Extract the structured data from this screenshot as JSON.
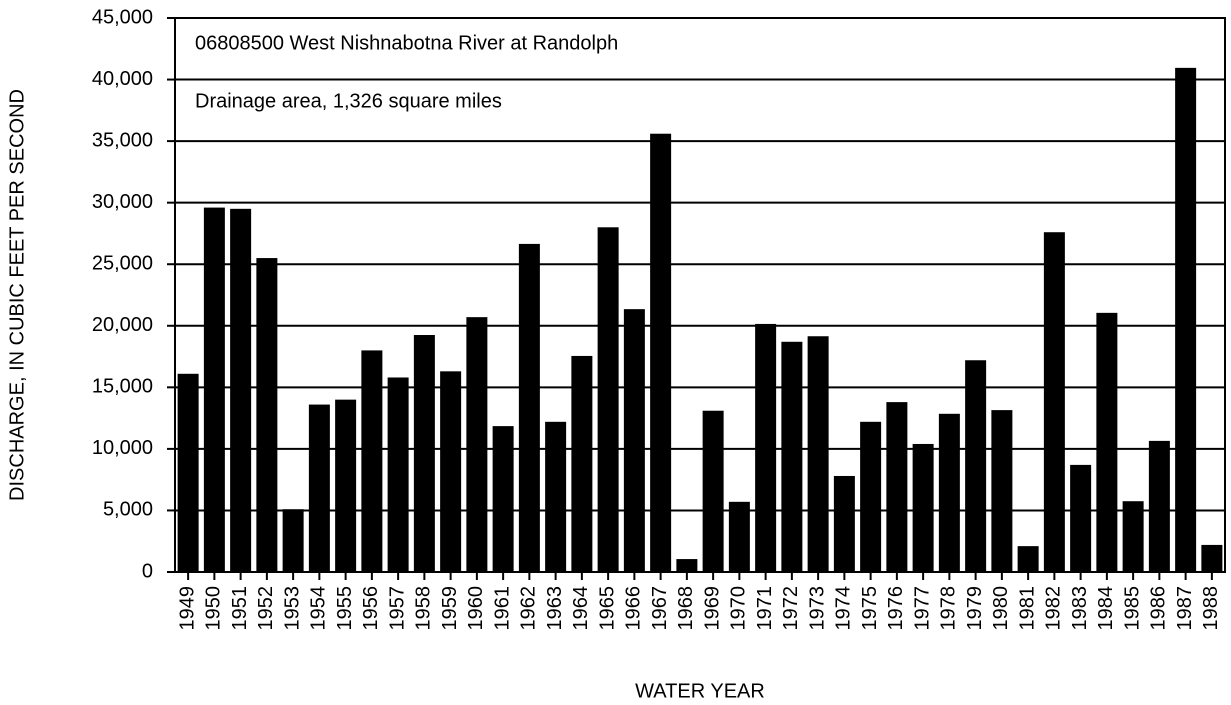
{
  "chart_data": {
    "type": "bar",
    "annotations": [
      "06808500 West Nishnabotna River at Randolph",
      "Drainage area,  1,326 square miles"
    ],
    "x_label": "WATER YEAR",
    "y_label": "DISCHARGE, IN CUBIC FEET PER SECOND",
    "categories": [
      "1949",
      "1950",
      "1951",
      "1952",
      "1953",
      "1954",
      "1955",
      "1956",
      "1957",
      "1958",
      "1959",
      "1960",
      "1961",
      "1962",
      "1963",
      "1964",
      "1965",
      "1966",
      "1967",
      "1968",
      "1969",
      "1970",
      "1971",
      "1972",
      "1973",
      "1974",
      "1975",
      "1976",
      "1977",
      "1978",
      "1979",
      "1980",
      "1981",
      "1982",
      "1983",
      "1984",
      "1985",
      "1986",
      "1987",
      "1988"
    ],
    "values": [
      16100,
      29600,
      29500,
      25500,
      5100,
      13600,
      14000,
      18000,
      15800,
      19250,
      16300,
      20700,
      11850,
      26650,
      12200,
      17550,
      28000,
      21350,
      35600,
      1050,
      13100,
      5700,
      20150,
      18700,
      19150,
      7800,
      12200,
      13800,
      10400,
      12850,
      17200,
      13150,
      2100,
      27600,
      8700,
      21050,
      5750,
      10650,
      40950,
      2200
    ],
    "color": "#000000",
    "ylim": [
      0,
      45000
    ],
    "yticks": [
      0,
      {
        "value": 5000,
        "label": "5,000"
      },
      {
        "value": 10000,
        "label": "10,000"
      },
      {
        "value": 15000,
        "label": "15,000"
      },
      {
        "value": 20000,
        "label": "20,000"
      },
      {
        "value": 25000,
        "label": "25,000"
      },
      {
        "value": 30000,
        "label": "30,000"
      },
      {
        "value": 35000,
        "label": "35,000"
      },
      {
        "value": 40000,
        "label": "40,000"
      },
      {
        "value": 45000,
        "label": "45,000"
      }
    ],
    "grid": true
  }
}
